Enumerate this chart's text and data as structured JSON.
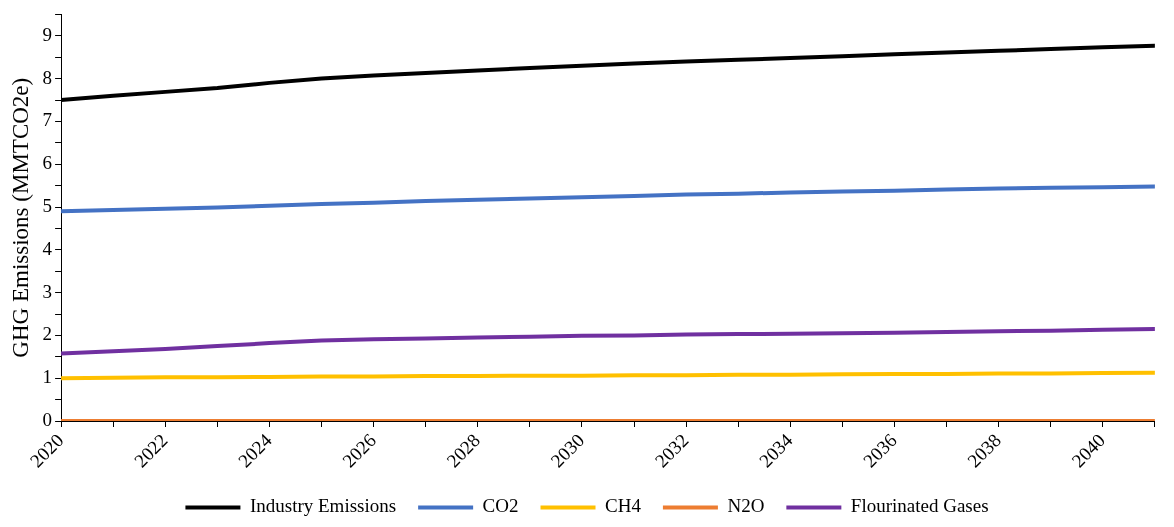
{
  "chart_data": {
    "type": "line",
    "ylabel": "GHG Emissions (MMTCO2e)",
    "x": [
      2020,
      2021,
      2022,
      2023,
      2024,
      2025,
      2026,
      2027,
      2028,
      2029,
      2030,
      2031,
      2032,
      2033,
      2034,
      2035,
      2036,
      2037,
      2038,
      2039,
      2040,
      2041
    ],
    "series": [
      {
        "name": "Industry Emissions",
        "color": "#000000",
        "values": [
          7.5,
          7.6,
          7.69,
          7.78,
          7.9,
          8.0,
          8.07,
          8.13,
          8.19,
          8.25,
          8.3,
          8.35,
          8.4,
          8.44,
          8.48,
          8.52,
          8.57,
          8.61,
          8.65,
          8.69,
          8.73,
          8.77
        ]
      },
      {
        "name": "CO2",
        "color": "#4472c4",
        "values": [
          4.9,
          4.93,
          4.96,
          4.99,
          5.03,
          5.07,
          5.1,
          5.14,
          5.17,
          5.2,
          5.23,
          5.26,
          5.29,
          5.31,
          5.34,
          5.36,
          5.38,
          5.41,
          5.43,
          5.45,
          5.46,
          5.48
        ]
      },
      {
        "name": "CH4",
        "color": "#ffc000",
        "values": [
          1.0,
          1.01,
          1.02,
          1.02,
          1.03,
          1.04,
          1.04,
          1.05,
          1.05,
          1.06,
          1.06,
          1.07,
          1.07,
          1.08,
          1.08,
          1.09,
          1.1,
          1.1,
          1.11,
          1.11,
          1.12,
          1.13
        ]
      },
      {
        "name": "N2O",
        "color": "#ed7d31",
        "values": [
          0,
          0,
          0,
          0,
          0,
          0,
          0,
          0,
          0,
          0,
          0,
          0,
          0,
          0,
          0,
          0,
          0,
          0,
          0,
          0,
          0,
          0
        ]
      },
      {
        "name": "Flourinated Gases",
        "color": "#7030a0",
        "values": [
          1.58,
          1.63,
          1.68,
          1.75,
          1.82,
          1.88,
          1.91,
          1.93,
          1.95,
          1.97,
          1.99,
          2.0,
          2.02,
          2.03,
          2.04,
          2.05,
          2.06,
          2.08,
          2.1,
          2.11,
          2.13,
          2.15
        ]
      }
    ],
    "xlim": [
      2020,
      2041
    ],
    "xticks": [
      2020,
      {
        "value": 2021,
        "label": null
      },
      2022,
      {
        "value": 2023,
        "label": null
      },
      2024,
      {
        "value": 2025,
        "label": null
      },
      2026,
      {
        "value": 2027,
        "label": null
      },
      2028,
      {
        "value": 2029,
        "label": null
      },
      2030,
      {
        "value": 2031,
        "label": null
      },
      2032,
      {
        "value": 2033,
        "label": null
      },
      2034,
      {
        "value": 2035,
        "label": null
      },
      2036,
      {
        "value": 2037,
        "label": null
      },
      2038,
      {
        "value": 2039,
        "label": null
      },
      2040,
      {
        "value": 2041,
        "label": null
      }
    ],
    "ylim": [
      0,
      9.5
    ],
    "yticks": [
      0,
      {
        "value": 0.5,
        "label": null
      },
      1,
      {
        "value": 1.5,
        "label": null
      },
      2,
      {
        "value": 2.5,
        "label": null
      },
      3,
      {
        "value": 3.5,
        "label": null
      },
      4,
      {
        "value": 4.5,
        "label": null
      },
      5,
      {
        "value": 5.5,
        "label": null
      },
      6,
      {
        "value": 6.5,
        "label": null
      },
      7,
      {
        "value": 7.5,
        "label": null
      },
      8,
      {
        "value": 8.5,
        "label": null
      },
      9,
      {
        "value": 9.5,
        "label": null
      }
    ],
    "legend": "bottom",
    "marker": "none",
    "line_style": "solid"
  }
}
